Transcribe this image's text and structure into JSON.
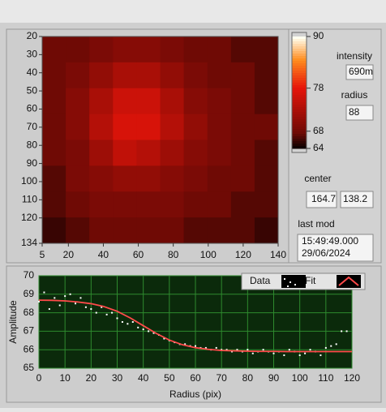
{
  "chart_data": [
    {
      "type": "heatmap",
      "xlim": [
        5,
        140
      ],
      "ylim": [
        20,
        134
      ],
      "xticks": [
        5,
        20,
        40,
        60,
        80,
        100,
        120,
        140
      ],
      "yticks": [
        20,
        30,
        40,
        50,
        60,
        70,
        80,
        90,
        100,
        110,
        120,
        134
      ],
      "clim": [
        64,
        90
      ],
      "cticks": [
        64,
        68,
        78,
        90
      ],
      "z": [
        [
          68,
          68,
          69,
          70,
          70,
          69,
          68,
          68,
          67,
          67
        ],
        [
          68,
          69,
          71,
          73,
          73,
          71,
          69,
          68,
          68,
          67
        ],
        [
          68,
          70,
          73,
          76,
          76,
          73,
          70,
          69,
          68,
          67
        ],
        [
          68,
          70,
          74,
          77,
          77,
          74,
          71,
          69,
          68,
          68
        ],
        [
          68,
          69,
          72,
          75,
          74,
          72,
          70,
          69,
          68,
          67
        ],
        [
          67,
          69,
          70,
          71,
          71,
          70,
          69,
          68,
          68,
          67
        ],
        [
          67,
          68,
          69,
          69,
          69,
          69,
          68,
          68,
          67,
          67
        ],
        [
          66,
          67,
          68,
          68,
          68,
          68,
          67,
          67,
          67,
          66
        ]
      ]
    },
    {
      "type": "line",
      "x_label": "Radius (pix)",
      "y_label": "Amplitude",
      "xlim": [
        0,
        120
      ],
      "ylim": [
        65,
        70
      ],
      "xticks": [
        0,
        10,
        20,
        30,
        40,
        50,
        60,
        70,
        80,
        90,
        100,
        110,
        120
      ],
      "yticks": [
        65,
        66,
        67,
        68,
        69,
        70
      ],
      "grid": true,
      "series": [
        {
          "name": "Data",
          "color": "#ffffff",
          "mode": "markers",
          "x": [
            0,
            2,
            4,
            6,
            8,
            10,
            12,
            14,
            16,
            18,
            20,
            22,
            24,
            26,
            28,
            30,
            32,
            34,
            36,
            38,
            40,
            42,
            44,
            46,
            48,
            50,
            52,
            54,
            56,
            58,
            60,
            62,
            64,
            66,
            68,
            70,
            72,
            74,
            76,
            78,
            80,
            82,
            84,
            86,
            88,
            90,
            92,
            94,
            96,
            98,
            100,
            102,
            104,
            106,
            108,
            110,
            112,
            114,
            116,
            118
          ],
          "values": [
            68.6,
            69.1,
            68.2,
            68.8,
            68.4,
            68.9,
            69.0,
            68.5,
            68.8,
            68.3,
            68.2,
            68.0,
            68.3,
            67.9,
            68.0,
            67.7,
            67.5,
            67.4,
            67.5,
            67.2,
            67.1,
            67.0,
            66.9,
            66.8,
            66.6,
            66.5,
            66.4,
            66.3,
            66.3,
            66.2,
            66.2,
            66.1,
            66.1,
            66.0,
            66.1,
            66.0,
            66.0,
            65.9,
            66.0,
            65.9,
            66.0,
            65.8,
            65.9,
            66.0,
            65.9,
            65.8,
            65.9,
            65.7,
            66.0,
            65.9,
            65.7,
            65.8,
            66.0,
            65.9,
            65.7,
            66.1,
            66.2,
            66.3,
            67.0,
            67.0
          ]
        },
        {
          "name": "Fit",
          "color": "#ff4a4a",
          "mode": "line",
          "x": [
            0,
            5,
            10,
            15,
            20,
            25,
            30,
            35,
            40,
            45,
            50,
            55,
            60,
            65,
            70,
            75,
            80,
            85,
            90,
            95,
            100,
            105,
            110,
            115,
            120
          ],
          "values": [
            68.68,
            68.67,
            68.64,
            68.58,
            68.49,
            68.33,
            68.08,
            67.72,
            67.3,
            66.88,
            66.52,
            66.27,
            66.11,
            66.02,
            65.96,
            65.94,
            65.92,
            65.91,
            65.91,
            65.9,
            65.9,
            65.9,
            65.9,
            65.9,
            65.9
          ]
        }
      ]
    }
  ],
  "controls": {
    "intensity": {
      "label": "intensity",
      "value": "690m"
    },
    "radius": {
      "label": "radius",
      "value": "88"
    },
    "center": {
      "label": "center",
      "x": "164.7",
      "y": "138.2"
    },
    "last_mod": {
      "label": "last mod",
      "time": "15:49:49.000",
      "date": "29/06/2024"
    }
  }
}
